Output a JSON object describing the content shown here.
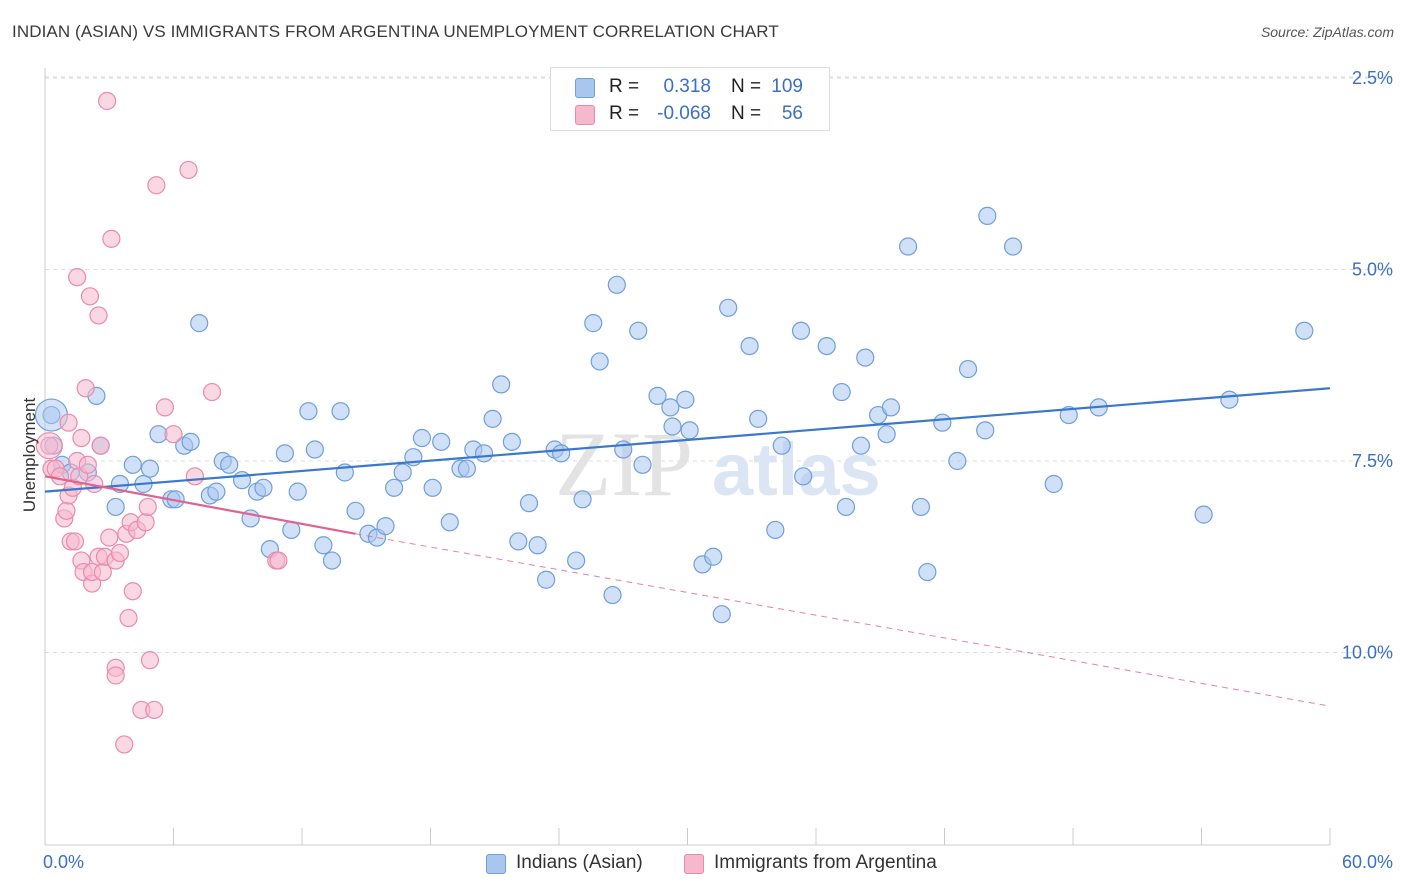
{
  "title": "INDIAN (ASIAN) VS IMMIGRANTS FROM ARGENTINA UNEMPLOYMENT CORRELATION CHART",
  "source": "Source: ZipAtlas.com",
  "legend": {
    "rows": [
      {
        "r_label": "R =",
        "r_value": "0.318",
        "n_label": "N =",
        "n_value": "109",
        "color": "#a9c7ee"
      },
      {
        "r_label": "R =",
        "r_value": "-0.068",
        "n_label": "N =",
        "n_value": "56",
        "color": "#f6b8cc"
      }
    ]
  },
  "bottom_legend": [
    {
      "label": "Indians (Asian)",
      "color": "#a9c7ee"
    },
    {
      "label": "Immigrants from Argentina",
      "color": "#f6b8cc"
    }
  ],
  "axes": {
    "ylabel": "Unemployment",
    "x_min_label": "0.0%",
    "x_max_label": "60.0%",
    "y_ticks": [
      "10.0%",
      "7.5%",
      "5.0%",
      "2.5%"
    ]
  },
  "watermark": {
    "part1": "ZIP",
    "part2": "atlas"
  },
  "colors": {
    "blue_fill": "#a9c7ee",
    "blue_stroke": "#6f9fdc",
    "blue_line": "#3a78cc",
    "pink_fill": "#f6b8cc",
    "pink_stroke": "#eb8aab",
    "pink_line": "#e0628f",
    "tick_text": "#3a6fc4",
    "grid": "#dddddd"
  },
  "chart_data": {
    "type": "scatter",
    "xlim": [
      0,
      60
    ],
    "ylim": [
      0,
      10.5
    ],
    "y_ticks": [
      2.5,
      5.0,
      7.5,
      10.0
    ],
    "grid": "horizontal dashed",
    "series": [
      {
        "name": "Indians (Asian)",
        "trend": {
          "x": [
            0,
            60
          ],
          "y": [
            4.6,
            5.95
          ]
        },
        "points": [
          [
            0.3,
            5.6
          ],
          [
            0.4,
            5.2
          ],
          [
            0.8,
            4.95
          ],
          [
            1.2,
            4.85
          ],
          [
            2.0,
            4.85
          ],
          [
            2.4,
            5.85
          ],
          [
            2.6,
            5.2
          ],
          [
            3.3,
            4.4
          ],
          [
            3.5,
            4.7
          ],
          [
            4.1,
            4.95
          ],
          [
            4.6,
            4.7
          ],
          [
            4.9,
            4.9
          ],
          [
            5.3,
            5.35
          ],
          [
            5.9,
            4.5
          ],
          [
            6.1,
            4.5
          ],
          [
            6.5,
            5.2
          ],
          [
            6.8,
            5.25
          ],
          [
            7.2,
            6.8
          ],
          [
            7.7,
            4.55
          ],
          [
            8.0,
            4.6
          ],
          [
            8.3,
            5.0
          ],
          [
            8.6,
            4.95
          ],
          [
            9.2,
            4.75
          ],
          [
            9.6,
            4.25
          ],
          [
            9.9,
            4.6
          ],
          [
            10.2,
            4.65
          ],
          [
            10.5,
            3.85
          ],
          [
            11.2,
            5.1
          ],
          [
            11.5,
            4.1
          ],
          [
            11.8,
            4.6
          ],
          [
            12.3,
            5.65
          ],
          [
            12.6,
            5.15
          ],
          [
            13.0,
            3.9
          ],
          [
            13.4,
            3.7
          ],
          [
            13.8,
            5.65
          ],
          [
            14.0,
            4.85
          ],
          [
            14.5,
            4.35
          ],
          [
            15.1,
            4.05
          ],
          [
            15.5,
            4.0
          ],
          [
            15.9,
            4.15
          ],
          [
            16.3,
            4.65
          ],
          [
            16.7,
            4.85
          ],
          [
            17.2,
            5.05
          ],
          [
            17.6,
            5.3
          ],
          [
            18.1,
            4.65
          ],
          [
            18.5,
            5.25
          ],
          [
            18.9,
            4.2
          ],
          [
            19.4,
            4.9
          ],
          [
            19.7,
            4.9
          ],
          [
            20.0,
            5.15
          ],
          [
            20.5,
            5.1
          ],
          [
            20.9,
            5.55
          ],
          [
            21.3,
            6.0
          ],
          [
            21.8,
            5.25
          ],
          [
            22.1,
            3.95
          ],
          [
            22.6,
            4.45
          ],
          [
            23.0,
            3.9
          ],
          [
            23.4,
            3.45
          ],
          [
            23.8,
            5.15
          ],
          [
            24.1,
            5.1
          ],
          [
            24.8,
            3.7
          ],
          [
            25.1,
            4.5
          ],
          [
            25.6,
            6.8
          ],
          [
            25.9,
            6.3
          ],
          [
            26.5,
            3.25
          ],
          [
            26.7,
            7.3
          ],
          [
            27.0,
            5.15
          ],
          [
            27.7,
            6.7
          ],
          [
            27.9,
            4.95
          ],
          [
            28.6,
            5.85
          ],
          [
            29.2,
            5.7
          ],
          [
            29.3,
            5.45
          ],
          [
            29.9,
            5.8
          ],
          [
            30.1,
            5.4
          ],
          [
            30.7,
            3.65
          ],
          [
            31.2,
            3.75
          ],
          [
            31.6,
            3.0
          ],
          [
            31.9,
            7.0
          ],
          [
            32.9,
            6.5
          ],
          [
            33.3,
            5.55
          ],
          [
            34.1,
            4.1
          ],
          [
            34.4,
            5.2
          ],
          [
            35.3,
            6.7
          ],
          [
            35.4,
            4.8
          ],
          [
            36.5,
            6.5
          ],
          [
            37.2,
            5.9
          ],
          [
            37.4,
            4.4
          ],
          [
            38.1,
            5.2
          ],
          [
            38.3,
            6.35
          ],
          [
            38.9,
            5.6
          ],
          [
            39.3,
            5.35
          ],
          [
            39.5,
            5.7
          ],
          [
            40.3,
            7.8
          ],
          [
            40.9,
            4.4
          ],
          [
            41.2,
            3.55
          ],
          [
            41.9,
            5.5
          ],
          [
            42.6,
            5.0
          ],
          [
            43.1,
            6.2
          ],
          [
            43.9,
            5.4
          ],
          [
            44.0,
            8.2
          ],
          [
            45.2,
            7.8
          ],
          [
            47.1,
            4.7
          ],
          [
            47.8,
            5.6
          ],
          [
            49.2,
            5.7
          ],
          [
            54.1,
            4.3
          ],
          [
            55.3,
            5.8
          ],
          [
            58.8,
            6.7
          ]
        ]
      },
      {
        "name": "Immigrants from Argentina",
        "trend": {
          "x": [
            0,
            14.5
          ],
          "y": [
            4.8,
            4.05
          ]
        },
        "trend_dashed": {
          "x": [
            14.5,
            60
          ],
          "y": [
            4.05,
            1.8
          ]
        },
        "points": [
          [
            0.2,
            5.2
          ],
          [
            0.3,
            4.9
          ],
          [
            0.5,
            4.9
          ],
          [
            0.7,
            4.8
          ],
          [
            0.9,
            4.25
          ],
          [
            1.0,
            4.35
          ],
          [
            1.1,
            5.5
          ],
          [
            1.1,
            4.55
          ],
          [
            1.2,
            3.95
          ],
          [
            1.3,
            4.65
          ],
          [
            1.4,
            3.95
          ],
          [
            1.5,
            5.0
          ],
          [
            1.5,
            7.4
          ],
          [
            1.6,
            4.8
          ],
          [
            1.7,
            3.7
          ],
          [
            1.7,
            5.3
          ],
          [
            1.8,
            3.55
          ],
          [
            1.9,
            5.95
          ],
          [
            2.0,
            4.95
          ],
          [
            2.1,
            7.15
          ],
          [
            2.2,
            3.4
          ],
          [
            2.2,
            3.55
          ],
          [
            2.3,
            4.7
          ],
          [
            2.5,
            3.75
          ],
          [
            2.5,
            6.9
          ],
          [
            2.6,
            5.2
          ],
          [
            2.7,
            3.55
          ],
          [
            2.8,
            3.75
          ],
          [
            2.9,
            9.7
          ],
          [
            3.0,
            4.0
          ],
          [
            3.1,
            7.9
          ],
          [
            3.3,
            2.3
          ],
          [
            3.3,
            3.7
          ],
          [
            3.3,
            2.2
          ],
          [
            3.5,
            3.8
          ],
          [
            3.7,
            1.3
          ],
          [
            3.8,
            4.05
          ],
          [
            3.9,
            2.95
          ],
          [
            4.0,
            4.2
          ],
          [
            4.1,
            3.3
          ],
          [
            4.3,
            4.1
          ],
          [
            4.5,
            1.75
          ],
          [
            4.7,
            4.2
          ],
          [
            4.8,
            4.4
          ],
          [
            4.9,
            2.4
          ],
          [
            5.1,
            1.75
          ],
          [
            5.2,
            8.6
          ],
          [
            5.6,
            5.7
          ],
          [
            6.0,
            5.35
          ],
          [
            6.7,
            8.8
          ],
          [
            7.0,
            4.8
          ],
          [
            7.8,
            5.9
          ],
          [
            10.8,
            3.7
          ],
          [
            10.9,
            3.7
          ]
        ]
      }
    ]
  }
}
